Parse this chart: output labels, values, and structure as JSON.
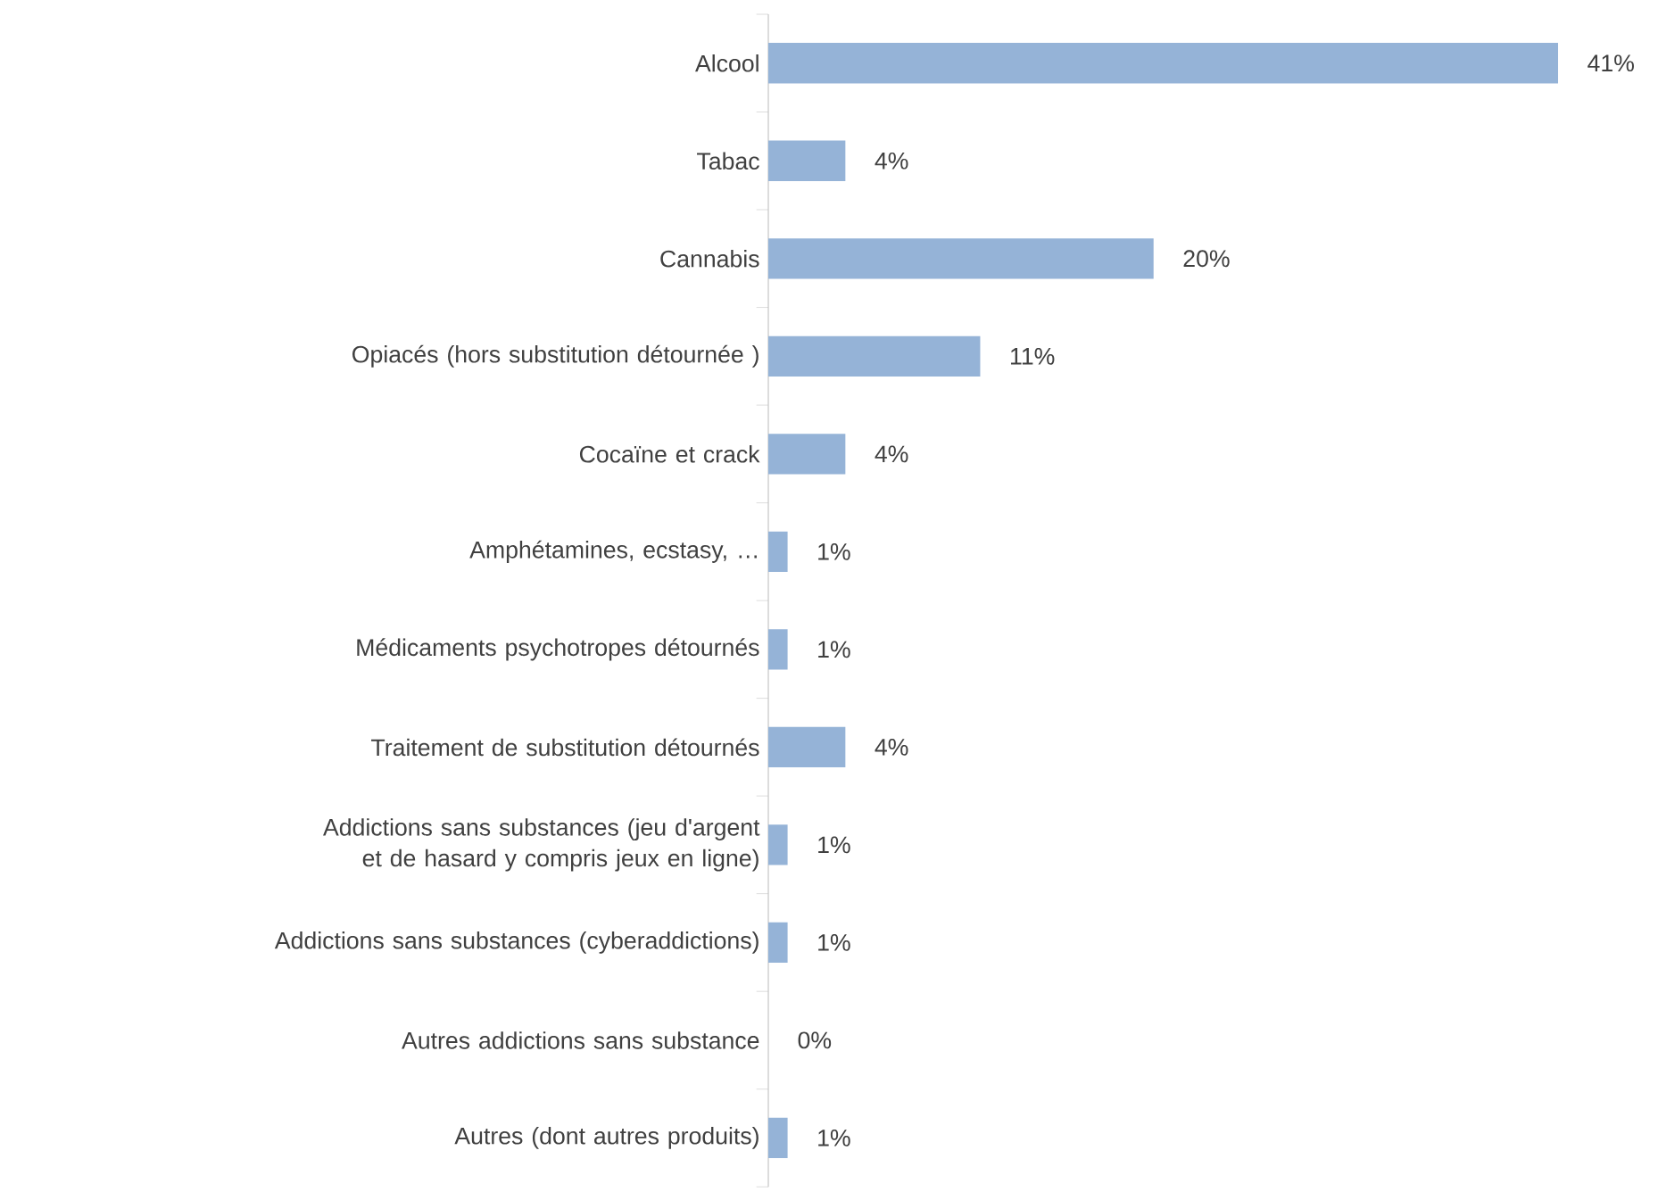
{
  "chart_data": {
    "type": "bar",
    "orientation": "horizontal",
    "categories": [
      "Alcool",
      "Tabac",
      "Cannabis",
      "Opiacés (hors substitution détournée )",
      "Cocaïne et crack",
      "Amphétamines, ecstasy, …",
      "Médicaments psychotropes détournés",
      "Traitement de substitution détournés",
      "Addictions sans substances (jeu d'argent et de hasard y compris jeux en ligne)",
      "Addictions sans substances (cyberaddictions)",
      "Autres addictions sans substance",
      "Autres (dont autres produits)"
    ],
    "values": [
      41,
      4,
      20,
      11,
      4,
      1,
      1,
      4,
      1,
      1,
      0,
      1
    ],
    "value_labels": [
      "41%",
      "4%",
      "20%",
      "11%",
      "4%",
      "1%",
      "1%",
      "4%",
      "1%",
      "1%",
      "0%",
      "1%"
    ],
    "color": "#95b3d7"
  }
}
